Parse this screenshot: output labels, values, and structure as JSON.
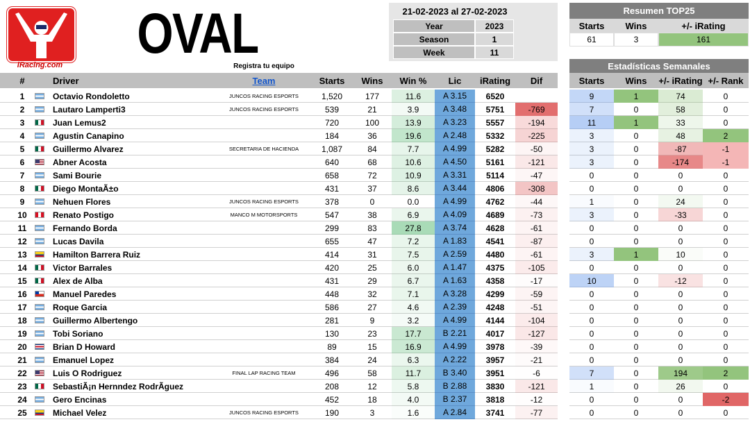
{
  "logo_text": "iRacing.com",
  "title": "OVAL",
  "subtitle": "Registra tu equipo",
  "date_range": "21-02-2023 al 27-02-2023",
  "info": [
    [
      "Year",
      "2023"
    ],
    [
      "Season",
      "1"
    ],
    [
      "Week",
      "11"
    ]
  ],
  "summary": {
    "title": "Resumen TOP25",
    "columns": [
      "Starts",
      "Wins",
      "+/- iRating"
    ],
    "values": [
      "61",
      "3",
      "161"
    ]
  },
  "weekly_title": "Estadísticas Semanales",
  "columns": [
    "#",
    "Driver",
    "Team",
    "Starts",
    "Wins",
    "Win %",
    "Lic",
    "iRating",
    "Dif"
  ],
  "weekly_columns": [
    "Starts",
    "Wins",
    "+/- iRating",
    "+/- Rank"
  ],
  "rows": [
    {
      "pos": "1",
      "driver": "Octavio Rondoletto",
      "team": "JUNCOS RACING ESPORTS",
      "starts": "1,520",
      "wins": "177",
      "win_pct": "11.6",
      "lic": "A 3.15",
      "irating": "6520",
      "dif": null,
      "weekly": [
        "9",
        "1",
        "74",
        "0"
      ]
    },
    {
      "pos": "2",
      "driver": "Lautaro Lamperti3",
      "team": "JUNCOS RACING ESPORTS",
      "starts": "539",
      "wins": "21",
      "win_pct": "3.9",
      "lic": "A 3.48",
      "irating": "5751",
      "dif": "-769",
      "weekly": [
        "7",
        "0",
        "58",
        "0"
      ]
    },
    {
      "pos": "3",
      "driver": "Juan Lemus2",
      "team": null,
      "starts": "720",
      "wins": "100",
      "win_pct": "13.9",
      "lic": "A 3.23",
      "irating": "5557",
      "dif": "-194",
      "weekly": [
        "11",
        "1",
        "33",
        "0"
      ]
    },
    {
      "pos": "4",
      "driver": "Agustin Canapino",
      "team": null,
      "starts": "184",
      "wins": "36",
      "win_pct": "19.6",
      "lic": "A 2.48",
      "irating": "5332",
      "dif": "-225",
      "weekly": [
        "3",
        "0",
        "48",
        "2"
      ]
    },
    {
      "pos": "5",
      "driver": "Guillermo Alvarez",
      "team": "SECRETARIA DE HACIENDA",
      "starts": "1,087",
      "wins": "84",
      "win_pct": "7.7",
      "lic": "A 4.99",
      "irating": "5282",
      "dif": "-50",
      "weekly": [
        "3",
        "0",
        "-87",
        "-1"
      ]
    },
    {
      "pos": "6",
      "driver": "Abner Acosta",
      "team": null,
      "starts": "640",
      "wins": "68",
      "win_pct": "10.6",
      "lic": "A 4.50",
      "irating": "5161",
      "dif": "-121",
      "weekly": [
        "3",
        "0",
        "-174",
        "-1"
      ]
    },
    {
      "pos": "7",
      "driver": "Sami Bourie",
      "team": null,
      "starts": "658",
      "wins": "72",
      "win_pct": "10.9",
      "lic": "A 3.31",
      "irating": "5114",
      "dif": "-47",
      "weekly": [
        "0",
        "0",
        "0",
        "0"
      ]
    },
    {
      "pos": "8",
      "driver": "Diego MontaÃ±o",
      "team": null,
      "starts": "431",
      "wins": "37",
      "win_pct": "8.6",
      "lic": "A 3.44",
      "irating": "4806",
      "dif": "-308",
      "weekly": [
        "0",
        "0",
        "0",
        "0"
      ]
    },
    {
      "pos": "9",
      "driver": "Nehuen Flores",
      "team": "JUNCOS RACING ESPORTS",
      "starts": "378",
      "wins": "0",
      "win_pct": "0.0",
      "lic": "A 4.99",
      "irating": "4762",
      "dif": "-44",
      "weekly": [
        "1",
        "0",
        "24",
        "0"
      ]
    },
    {
      "pos": "10",
      "driver": "Renato Postigo",
      "team": "MANCO M MOTORSPORTS",
      "starts": "547",
      "wins": "38",
      "win_pct": "6.9",
      "lic": "A 4.09",
      "irating": "4689",
      "dif": "-73",
      "weekly": [
        "3",
        "0",
        "-33",
        "0"
      ]
    },
    {
      "pos": "11",
      "driver": "Fernando Borda",
      "team": null,
      "starts": "299",
      "wins": "83",
      "win_pct": "27.8",
      "lic": "A 3.74",
      "irating": "4628",
      "dif": "-61",
      "weekly": [
        "0",
        "0",
        "0",
        "0"
      ]
    },
    {
      "pos": "12",
      "driver": "Lucas Davila",
      "team": null,
      "starts": "655",
      "wins": "47",
      "win_pct": "7.2",
      "lic": "A 1.83",
      "irating": "4541",
      "dif": "-87",
      "weekly": [
        "0",
        "0",
        "0",
        "0"
      ]
    },
    {
      "pos": "13",
      "driver": "Hamilton Barrera Ruiz",
      "team": null,
      "starts": "414",
      "wins": "31",
      "win_pct": "7.5",
      "lic": "A 2.59",
      "irating": "4480",
      "dif": "-61",
      "weekly": [
        "3",
        "1",
        "10",
        "0"
      ]
    },
    {
      "pos": "14",
      "driver": "Victor Barrales",
      "team": null,
      "starts": "420",
      "wins": "25",
      "win_pct": "6.0",
      "lic": "A 1.47",
      "irating": "4375",
      "dif": "-105",
      "weekly": [
        "0",
        "0",
        "0",
        "0"
      ]
    },
    {
      "pos": "15",
      "driver": "Alex de Alba",
      "team": null,
      "starts": "431",
      "wins": "29",
      "win_pct": "6.7",
      "lic": "A 1.63",
      "irating": "4358",
      "dif": "-17",
      "weekly": [
        "10",
        "0",
        "-12",
        "0"
      ]
    },
    {
      "pos": "16",
      "driver": "Manuel Paredes",
      "team": null,
      "starts": "448",
      "wins": "32",
      "win_pct": "7.1",
      "lic": "A 3.28",
      "irating": "4299",
      "dif": "-59",
      "weekly": [
        "0",
        "0",
        "0",
        "0"
      ]
    },
    {
      "pos": "17",
      "driver": "Roque Garcia",
      "team": null,
      "starts": "586",
      "wins": "27",
      "win_pct": "4.6",
      "lic": "A 2.39",
      "irating": "4248",
      "dif": "-51",
      "weekly": [
        "0",
        "0",
        "0",
        "0"
      ]
    },
    {
      "pos": "18",
      "driver": "Guillermo Albertengo",
      "team": null,
      "starts": "281",
      "wins": "9",
      "win_pct": "3.2",
      "lic": "A 4.99",
      "irating": "4144",
      "dif": "-104",
      "weekly": [
        "0",
        "0",
        "0",
        "0"
      ]
    },
    {
      "pos": "19",
      "driver": "Tobi Soriano",
      "team": null,
      "starts": "130",
      "wins": "23",
      "win_pct": "17.7",
      "lic": "B 2.21",
      "irating": "4017",
      "dif": "-127",
      "weekly": [
        "0",
        "0",
        "0",
        "0"
      ]
    },
    {
      "pos": "20",
      "driver": "Brian D Howard",
      "team": null,
      "starts": "89",
      "wins": "15",
      "win_pct": "16.9",
      "lic": "A 4.99",
      "irating": "3978",
      "dif": "-39",
      "weekly": [
        "0",
        "0",
        "0",
        "0"
      ]
    },
    {
      "pos": "21",
      "driver": "Emanuel Lopez",
      "team": null,
      "starts": "384",
      "wins": "24",
      "win_pct": "6.3",
      "lic": "A 2.22",
      "irating": "3957",
      "dif": "-21",
      "weekly": [
        "0",
        "0",
        "0",
        "0"
      ]
    },
    {
      "pos": "22",
      "driver": "Luis O Rodriguez",
      "team": "FINAL LAP RACING TEAM",
      "starts": "496",
      "wins": "58",
      "win_pct": "11.7",
      "lic": "B 3.40",
      "irating": "3951",
      "dif": "-6",
      "weekly": [
        "7",
        "0",
        "194",
        "2"
      ]
    },
    {
      "pos": "23",
      "driver": "SebastiÃ¡n Hernndez RodrÃguez",
      "team": null,
      "starts": "208",
      "wins": "12",
      "win_pct": "5.8",
      "lic": "B 2.88",
      "irating": "3830",
      "dif": "-121",
      "weekly": [
        "1",
        "0",
        "26",
        "0"
      ]
    },
    {
      "pos": "24",
      "driver": "Gero Encinas",
      "team": null,
      "starts": "452",
      "wins": "18",
      "win_pct": "4.0",
      "lic": "B 2.37",
      "irating": "3818",
      "dif": "-12",
      "weekly": [
        "0",
        "0",
        "0",
        "-2"
      ]
    },
    {
      "pos": "25",
      "driver": "Michael Velez",
      "team": "JUNCOS RACING ESPORTS",
      "starts": "190",
      "wins": "3",
      "win_pct": "1.6",
      "lic": "A 2.84",
      "irating": "3741",
      "dif": "-77",
      "weekly": [
        "0",
        "0",
        "0",
        "0"
      ]
    }
  ]
}
